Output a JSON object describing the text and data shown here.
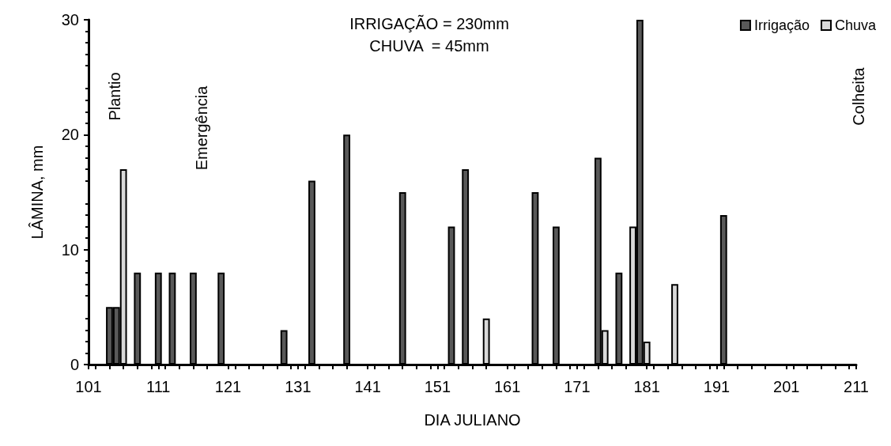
{
  "chart_data": {
    "type": "bar",
    "xlabel": "DIA JULIANO",
    "ylabel": "LÂMINA, mm",
    "xlim": [
      101,
      211
    ],
    "xticks": [
      101,
      111,
      121,
      131,
      141,
      151,
      161,
      171,
      181,
      191,
      201,
      211
    ],
    "ylim": [
      0,
      30
    ],
    "yticks": [
      0,
      10,
      20,
      30
    ],
    "series": [
      {
        "name": "Irrigação",
        "color": "#595959",
        "x": [
          104,
          105,
          108,
          111,
          113,
          116,
          120,
          129,
          133,
          138,
          146,
          153,
          155,
          165,
          168,
          174,
          177,
          180,
          192
        ],
        "values": [
          5,
          5,
          8,
          8,
          8,
          8,
          8,
          3,
          16,
          20,
          15,
          12,
          17,
          15,
          12,
          18,
          8,
          30,
          13
        ]
      },
      {
        "name": "Chuva",
        "color": "#d9d9d9",
        "x": [
          106,
          158,
          175,
          179,
          181,
          185
        ],
        "values": [
          17,
          4,
          3,
          12,
          2,
          7
        ]
      }
    ],
    "annotations": [
      "IRRIGAÇÃO = 230mm",
      "CHUVA  = 45mm",
      "Plantio",
      "Emergência",
      "Colheita"
    ],
    "legend": "top right",
    "grid": false
  }
}
